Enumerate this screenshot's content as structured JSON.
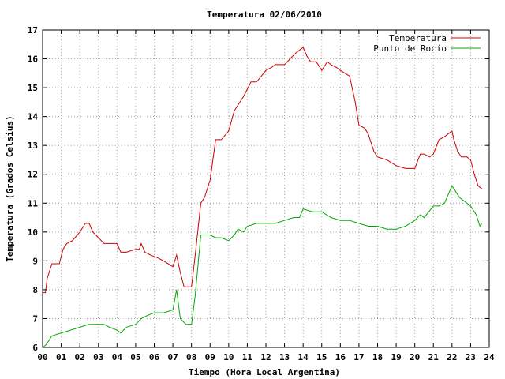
{
  "chart_data": {
    "type": "line",
    "title": "Temperatura 02/06/2010",
    "xlabel": "Tiempo (Hora Local Argentina)",
    "ylabel": "Temperatura (Grados Celsius)",
    "xlim": [
      0,
      24
    ],
    "ylim": [
      6,
      17
    ],
    "grid": true,
    "legend_position": "top-right",
    "x_ticks": [
      "00",
      "01",
      "02",
      "03",
      "04",
      "05",
      "06",
      "07",
      "08",
      "09",
      "10",
      "11",
      "12",
      "13",
      "14",
      "15",
      "16",
      "17",
      "18",
      "19",
      "20",
      "21",
      "22",
      "23",
      "24"
    ],
    "y_ticks": [
      "6",
      "7",
      "8",
      "9",
      "10",
      "11",
      "12",
      "13",
      "14",
      "15",
      "16",
      "17"
    ],
    "series": [
      {
        "name": "Temperatura",
        "color": "#cc0000",
        "x": [
          0.0,
          0.15,
          0.25,
          0.5,
          0.9,
          1.1,
          1.3,
          1.6,
          2.0,
          2.3,
          2.5,
          2.7,
          3.0,
          3.3,
          3.6,
          4.0,
          4.2,
          4.5,
          5.0,
          5.2,
          5.3,
          5.5,
          5.8,
          6.2,
          6.5,
          7.0,
          7.2,
          7.4,
          7.6,
          8.0,
          8.2,
          8.5,
          8.7,
          9.0,
          9.3,
          9.6,
          10.0,
          10.3,
          10.5,
          10.8,
          11.2,
          11.5,
          12.0,
          12.3,
          12.5,
          13.0,
          13.3,
          13.6,
          14.0,
          14.2,
          14.4,
          14.7,
          15.0,
          15.3,
          15.5,
          15.8,
          16.0,
          16.5,
          16.8,
          17.0,
          17.3,
          17.5,
          17.8,
          18.0,
          18.5,
          19.0,
          19.5,
          20.0,
          20.3,
          20.5,
          20.8,
          21.0,
          21.3,
          21.6,
          22.0,
          22.1,
          22.3,
          22.5,
          22.8,
          23.0,
          23.2,
          23.4,
          23.6
        ],
        "values": [
          7.9,
          7.9,
          8.4,
          8.9,
          8.9,
          9.4,
          9.6,
          9.7,
          10.0,
          10.3,
          10.3,
          10.0,
          9.8,
          9.6,
          9.6,
          9.6,
          9.3,
          9.3,
          9.4,
          9.4,
          9.6,
          9.3,
          9.2,
          9.1,
          9.0,
          8.8,
          9.2,
          8.6,
          8.1,
          8.1,
          9.2,
          11.0,
          11.2,
          11.8,
          13.2,
          13.2,
          13.5,
          14.2,
          14.4,
          14.7,
          15.2,
          15.2,
          15.6,
          15.7,
          15.8,
          15.8,
          16.0,
          16.2,
          16.4,
          16.1,
          15.9,
          15.9,
          15.6,
          15.9,
          15.8,
          15.7,
          15.6,
          15.4,
          14.5,
          13.7,
          13.6,
          13.4,
          12.8,
          12.6,
          12.5,
          12.3,
          12.2,
          12.2,
          12.7,
          12.7,
          12.6,
          12.7,
          13.2,
          13.3,
          13.5,
          13.2,
          12.8,
          12.6,
          12.6,
          12.5,
          12.0,
          11.6,
          11.5
        ]
      },
      {
        "name": "Punto de Rocío",
        "color": "#00aa00",
        "x": [
          0.0,
          0.2,
          0.5,
          1.0,
          1.5,
          2.0,
          2.5,
          3.0,
          3.3,
          3.6,
          4.0,
          4.2,
          4.5,
          5.0,
          5.3,
          5.6,
          6.0,
          6.5,
          7.0,
          7.2,
          7.4,
          7.7,
          8.0,
          8.2,
          8.5,
          8.8,
          9.0,
          9.3,
          9.6,
          10.0,
          10.3,
          10.5,
          10.8,
          11.0,
          11.5,
          12.0,
          12.5,
          13.0,
          13.5,
          13.8,
          14.0,
          14.5,
          15.0,
          15.5,
          16.0,
          16.5,
          17.0,
          17.5,
          18.0,
          18.5,
          19.0,
          19.5,
          20.0,
          20.3,
          20.5,
          21.0,
          21.3,
          21.6,
          22.0,
          22.1,
          22.4,
          22.8,
          23.0,
          23.3,
          23.5,
          23.6
        ],
        "values": [
          6.0,
          6.1,
          6.4,
          6.5,
          6.6,
          6.7,
          6.8,
          6.8,
          6.8,
          6.7,
          6.6,
          6.5,
          6.7,
          6.8,
          7.0,
          7.1,
          7.2,
          7.2,
          7.3,
          8.0,
          7.0,
          6.8,
          6.8,
          7.8,
          9.9,
          9.9,
          9.9,
          9.8,
          9.8,
          9.7,
          9.9,
          10.1,
          10.0,
          10.2,
          10.3,
          10.3,
          10.3,
          10.4,
          10.5,
          10.5,
          10.8,
          10.7,
          10.7,
          10.5,
          10.4,
          10.4,
          10.3,
          10.2,
          10.2,
          10.1,
          10.1,
          10.2,
          10.4,
          10.6,
          10.5,
          10.9,
          10.9,
          11.0,
          11.6,
          11.5,
          11.2,
          11.0,
          10.9,
          10.6,
          10.2,
          10.3
        ]
      }
    ]
  }
}
